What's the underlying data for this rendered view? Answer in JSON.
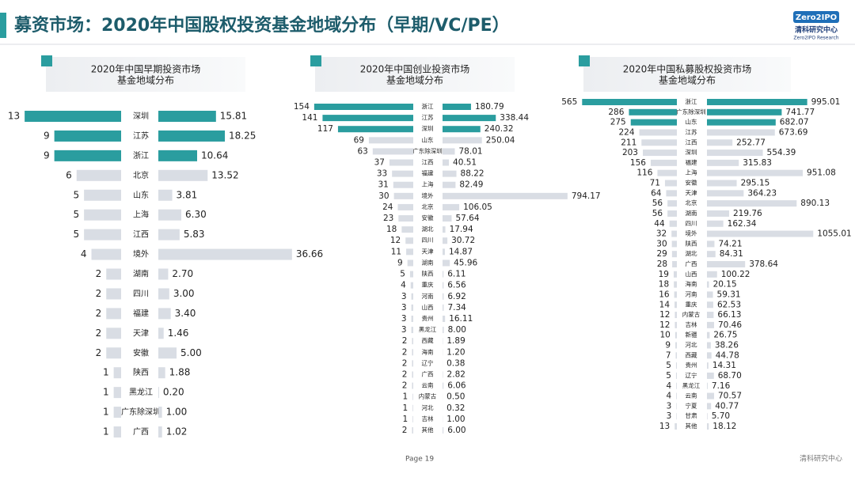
{
  "header": {
    "title": "募资市场：2020年中国股权投资基金地域分布（早期/VC/PE）",
    "logo": "Zero2IPO",
    "logo_cn": "清科研究中心",
    "logo_en": "Zero2IPO Research"
  },
  "footer": {
    "page": "Page 19",
    "brand": "清科研究中心"
  },
  "chart_data": [
    {
      "type": "butterfly",
      "title": [
        "2020年中国早期投资市场",
        "基金地域分布"
      ],
      "categories": [
        "深圳",
        "江苏",
        "浙江",
        "北京",
        "山东",
        "上海",
        "江西",
        "境外",
        "湖南",
        "四川",
        "福建",
        "天津",
        "安徽",
        "陕西",
        "黑龙江",
        "广东除深圳",
        "广西"
      ],
      "series": [
        {
          "values": [
            13,
            9,
            9,
            6,
            5,
            5,
            5,
            4,
            2,
            2,
            2,
            2,
            2,
            1,
            1,
            1,
            1
          ],
          "colors": [
            "#2a9d9f",
            "#2a9d9f",
            "#2a9d9f",
            "#d9dde4",
            "#d9dde4",
            "#d9dde4",
            "#d9dde4",
            "#d9dde4",
            "#d9dde4",
            "#d9dde4",
            "#d9dde4",
            "#d9dde4",
            "#d9dde4",
            "#d9dde4",
            "#d9dde4",
            "#d9dde4",
            "#d9dde4"
          ]
        },
        {
          "values": [
            15.81,
            18.25,
            10.64,
            13.52,
            3.81,
            6.3,
            5.83,
            36.66,
            2.7,
            3,
            3.4,
            1.46,
            5,
            1.88,
            0.2,
            1,
            1.02
          ],
          "value_labels": [
            "15.81",
            "18.25",
            "10.64",
            "13.52",
            "3.81",
            "6.30",
            "5.83",
            "36.66",
            "2.70",
            "3.00",
            "3.40",
            "1.46",
            "5.00",
            "1.88",
            "0.20",
            "1.00",
            "1.02"
          ],
          "colors": [
            "#2a9d9f",
            "#2a9d9f",
            "#2a9d9f",
            "#d9dde4",
            "#d9dde4",
            "#d9dde4",
            "#d9dde4",
            "#d9dde4",
            "#d9dde4",
            "#d9dde4",
            "#d9dde4",
            "#d9dde4",
            "#d9dde4",
            "#d9dde4",
            "#d9dde4",
            "#d9dde4",
            "#d9dde4"
          ]
        }
      ],
      "xlim": [
        0,
        16
      ],
      "x2lim": [
        0,
        38
      ]
    },
    {
      "type": "butterfly",
      "title": [
        "2020年中国创业投资市场",
        "基金地域分布"
      ],
      "categories": [
        "浙江",
        "江苏",
        "深圳",
        "山东",
        "广东除深圳",
        "江西",
        "福建",
        "上海",
        "境外",
        "北京",
        "安徽",
        "湖北",
        "四川",
        "天津",
        "湖南",
        "陕西",
        "重庆",
        "河南",
        "山西",
        "贵州",
        "黑龙江",
        "西藏",
        "海南",
        "辽宁",
        "广西",
        "云南",
        "内蒙古",
        "河北",
        "吉林",
        "其他"
      ],
      "series": [
        {
          "values": [
            154,
            141,
            117,
            69,
            63,
            37,
            33,
            31,
            30,
            24,
            23,
            18,
            12,
            11,
            9,
            5,
            4,
            3,
            3,
            3,
            3,
            2,
            2,
            2,
            2,
            2,
            1,
            1,
            1,
            2
          ],
          "colors": [
            "#2a9d9f",
            "#2a9d9f",
            "#2a9d9f",
            "#d9dde4",
            "#d9dde4",
            "#d9dde4",
            "#d9dde4",
            "#d9dde4",
            "#d9dde4",
            "#d9dde4",
            "#d9dde4",
            "#d9dde4",
            "#d9dde4",
            "#d9dde4",
            "#d9dde4",
            "#d9dde4",
            "#d9dde4",
            "#d9dde4",
            "#d9dde4",
            "#d9dde4",
            "#d9dde4",
            "#d9dde4",
            "#d9dde4",
            "#d9dde4",
            "#d9dde4",
            "#d9dde4",
            "#d9dde4",
            "#d9dde4",
            "#d9dde4",
            "#d9dde4"
          ]
        },
        {
          "values": [
            180.79,
            338.44,
            240.32,
            250.04,
            78.01,
            40.51,
            88.22,
            82.49,
            794.17,
            106.05,
            57.64,
            17.94,
            30.72,
            14.87,
            45.96,
            6.11,
            6.56,
            6.92,
            7.34,
            16.11,
            8,
            1.89,
            1.2,
            0.38,
            2.82,
            6.06,
            0.5,
            0.32,
            1,
            6
          ],
          "value_labels": [
            "180.79",
            "338.44",
            "240.32",
            "250.04",
            "78.01",
            "40.51",
            "88.22",
            "82.49",
            "794.17",
            "106.05",
            "57.64",
            "17.94",
            "30.72",
            "14.87",
            "45.96",
            "6.11",
            "6.56",
            "6.92",
            "7.34",
            "16.11",
            "8.00",
            "1.89",
            "1.20",
            "0.38",
            "2.82",
            "6.06",
            "0.50",
            "0.32",
            "1.00",
            "6.00"
          ],
          "colors": [
            "#2a9d9f",
            "#2a9d9f",
            "#2a9d9f",
            "#d9dde4",
            "#d9dde4",
            "#d9dde4",
            "#d9dde4",
            "#d9dde4",
            "#d9dde4",
            "#d9dde4",
            "#d9dde4",
            "#d9dde4",
            "#d9dde4",
            "#d9dde4",
            "#d9dde4",
            "#d9dde4",
            "#d9dde4",
            "#d9dde4",
            "#d9dde4",
            "#d9dde4",
            "#d9dde4",
            "#d9dde4",
            "#d9dde4",
            "#d9dde4",
            "#d9dde4",
            "#d9dde4",
            "#d9dde4",
            "#d9dde4",
            "#d9dde4",
            "#d9dde4"
          ]
        }
      ],
      "xlim": [
        0,
        160
      ],
      "x2lim": [
        0,
        830
      ]
    },
    {
      "type": "butterfly",
      "title": [
        "2020年中国私募股权投资市场",
        "基金地域分布"
      ],
      "categories": [
        "浙江",
        "广东除深圳",
        "山东",
        "江苏",
        "江西",
        "深圳",
        "福建",
        "上海",
        "安徽",
        "天津",
        "北京",
        "湖南",
        "四川",
        "境外",
        "陕西",
        "湖北",
        "广西",
        "山西",
        "海南",
        "河南",
        "重庆",
        "内蒙古",
        "吉林",
        "新疆",
        "河北",
        "西藏",
        "贵州",
        "辽宁",
        "黑龙江",
        "云南",
        "宁夏",
        "甘肃",
        "其他"
      ],
      "series": [
        {
          "values": [
            565,
            286,
            275,
            224,
            211,
            203,
            156,
            116,
            71,
            64,
            56,
            56,
            44,
            32,
            30,
            29,
            28,
            19,
            18,
            16,
            14,
            12,
            12,
            10,
            9,
            7,
            5,
            5,
            4,
            4,
            3,
            3,
            13
          ],
          "colors": [
            "#2a9d9f",
            "#2a9d9f",
            "#2a9d9f",
            "#d9dde4",
            "#d9dde4",
            "#d9dde4",
            "#d9dde4",
            "#d9dde4",
            "#d9dde4",
            "#d9dde4",
            "#d9dde4",
            "#d9dde4",
            "#d9dde4",
            "#d9dde4",
            "#d9dde4",
            "#d9dde4",
            "#d9dde4",
            "#d9dde4",
            "#d9dde4",
            "#d9dde4",
            "#d9dde4",
            "#d9dde4",
            "#d9dde4",
            "#d9dde4",
            "#d9dde4",
            "#d9dde4",
            "#d9dde4",
            "#d9dde4",
            "#d9dde4",
            "#d9dde4",
            "#d9dde4",
            "#d9dde4",
            "#d9dde4"
          ]
        },
        {
          "values": [
            995.01,
            741.77,
            682.07,
            673.69,
            252.77,
            554.39,
            315.83,
            951.08,
            295.15,
            364.23,
            890.13,
            219.76,
            162.34,
            1055.01,
            74.21,
            84.31,
            378.64,
            100.22,
            20.15,
            59.31,
            62.53,
            66.13,
            70.46,
            26.75,
            38.26,
            44.78,
            14.31,
            68.7,
            7.16,
            70.57,
            40.77,
            5.7,
            18.12
          ],
          "value_labels": [
            "995.01",
            "741.77",
            "682.07",
            "673.69",
            "252.77",
            "554.39",
            "315.83",
            "951.08",
            "295.15",
            "364.23",
            "890.13",
            "219.76",
            "162.34",
            "1055.01",
            "74.21",
            "84.31",
            "378.64",
            "100.22",
            "20.15",
            "59.31",
            "62.53",
            "66.13",
            "70.46",
            "26.75",
            "38.26",
            "44.78",
            "14.31",
            "68.70",
            "7.16",
            "70.57",
            "40.77",
            "5.70",
            "18.12"
          ],
          "colors": [
            "#2a9d9f",
            "#2a9d9f",
            "#2a9d9f",
            "#d9dde4",
            "#d9dde4",
            "#d9dde4",
            "#d9dde4",
            "#d9dde4",
            "#d9dde4",
            "#d9dde4",
            "#d9dde4",
            "#d9dde4",
            "#d9dde4",
            "#d9dde4",
            "#d9dde4",
            "#d9dde4",
            "#d9dde4",
            "#d9dde4",
            "#d9dde4",
            "#d9dde4",
            "#d9dde4",
            "#d9dde4",
            "#d9dde4",
            "#d9dde4",
            "#d9dde4",
            "#d9dde4",
            "#d9dde4",
            "#d9dde4",
            "#d9dde4",
            "#d9dde4",
            "#d9dde4",
            "#d9dde4",
            "#d9dde4"
          ]
        }
      ],
      "xlim": [
        0,
        590
      ],
      "x2lim": [
        0,
        1100
      ]
    }
  ]
}
